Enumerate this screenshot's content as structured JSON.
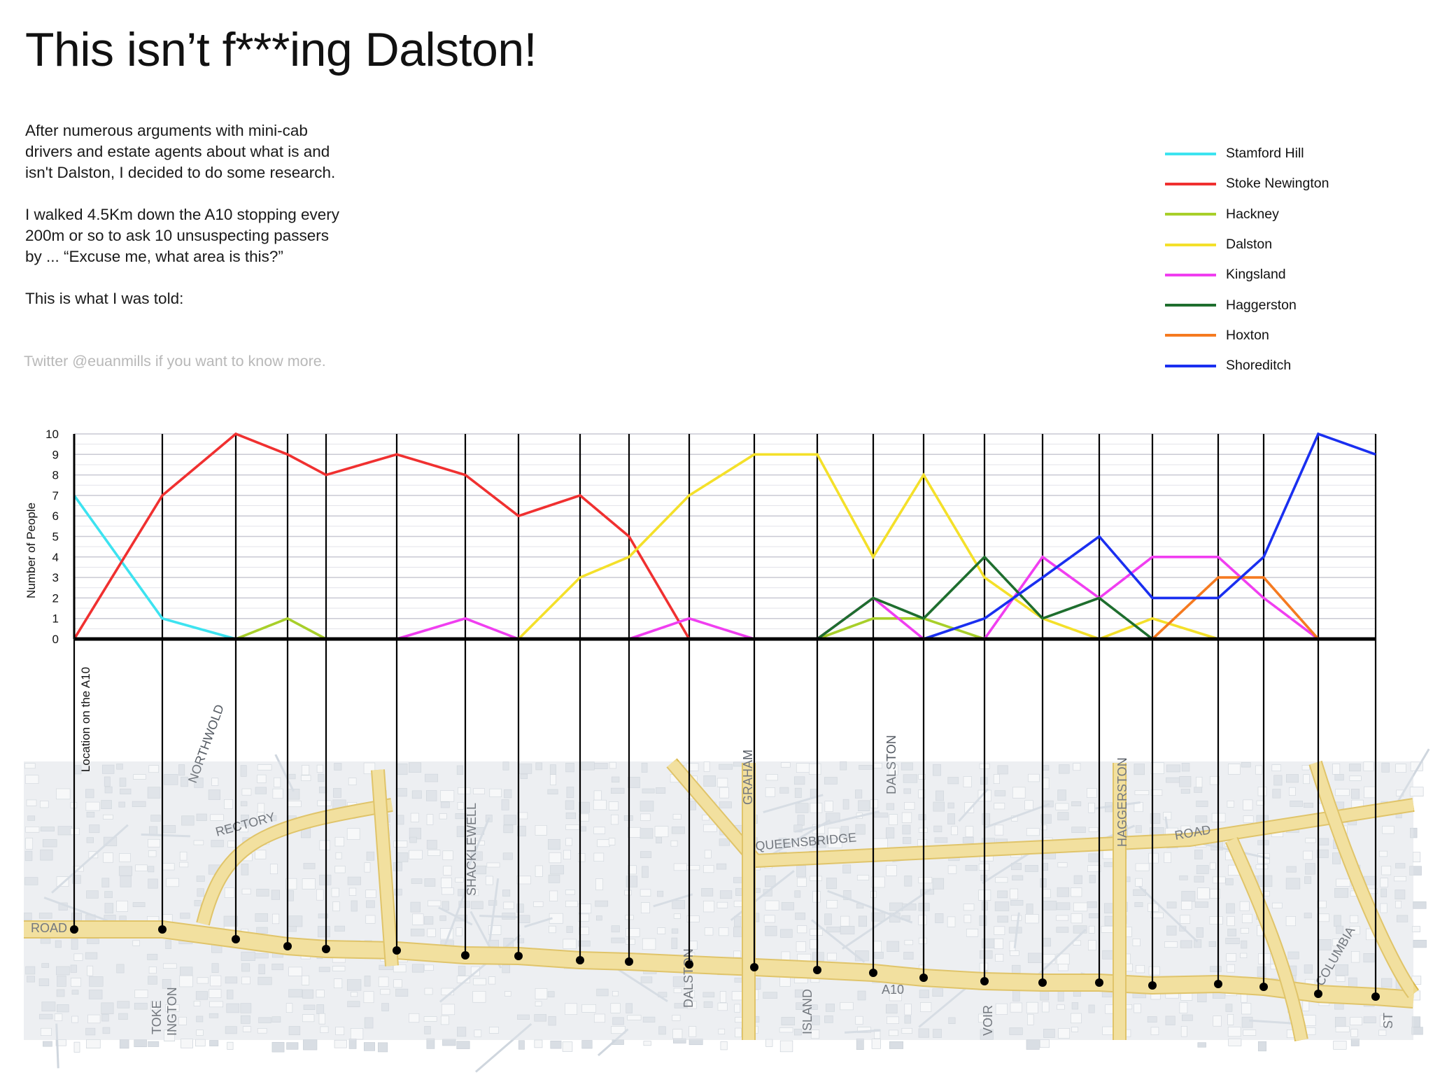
{
  "title": "This isn’t f***ing Dalston!",
  "intro": {
    "p1": "After numerous arguments with mini-cab\ndrivers and estate agents about what is and\nisn't Dalston, I decided to do some research.",
    "p2": "I walked 4.5Km down the A10 stopping every\n200m or so to ask 10 unsuspecting passers\nby ... “Excuse me, what area is this?”",
    "p3": "This is what I was told:",
    "twitter": "Twitter @euanmills if you want to know more."
  },
  "colors": {
    "grid": "#c9c9d3",
    "axis": "#000000",
    "map_base": "#e9ecef",
    "map_road_main": "#efd98a",
    "map_road_minor": "#cfd6de"
  },
  "chart_data": {
    "type": "line",
    "ylabel": "Number of People",
    "xlabel": "Location on the A10",
    "ylim": [
      0,
      10
    ],
    "yticks": [
      "0",
      "1",
      "2",
      "3",
      "4",
      "5",
      "6",
      "7",
      "8",
      "9",
      "10"
    ],
    "x": [
      1,
      2,
      3,
      4,
      5,
      6,
      7,
      8,
      9,
      10,
      11,
      12,
      13,
      14,
      15,
      16,
      17,
      18,
      19,
      20,
      21,
      22,
      23,
      24
    ],
    "series": [
      {
        "name": "Stamford Hill",
        "color": "#3de3f0",
        "values": [
          7,
          1,
          0,
          null,
          null,
          null,
          null,
          null,
          null,
          null,
          null,
          null,
          null,
          null,
          null,
          null,
          null,
          null,
          null,
          null,
          null,
          null,
          null,
          null
        ]
      },
      {
        "name": "Stoke Newington",
        "color": "#f03030",
        "values": [
          0,
          7,
          10,
          9,
          8,
          9,
          8,
          6,
          7,
          5,
          0,
          null,
          null,
          null,
          null,
          null,
          null,
          null,
          null,
          null,
          null,
          null,
          null,
          null
        ]
      },
      {
        "name": "Hackney",
        "color": "#a8cf2a",
        "values": [
          null,
          null,
          0,
          1,
          0,
          null,
          null,
          null,
          null,
          null,
          null,
          null,
          0,
          1,
          1,
          0,
          null,
          null,
          null,
          null,
          null,
          null,
          null,
          null
        ]
      },
      {
        "name": "Dalston",
        "color": "#f4e02a",
        "values": [
          null,
          null,
          null,
          null,
          null,
          null,
          null,
          0,
          3,
          4,
          7,
          9,
          9,
          4,
          8,
          3,
          1,
          0,
          1,
          0,
          null,
          null,
          null,
          null
        ]
      },
      {
        "name": "Kingsland",
        "color": "#f03ef0",
        "values": [
          null,
          null,
          null,
          null,
          null,
          0,
          1,
          0,
          null,
          0,
          1,
          0,
          0,
          2,
          0,
          0,
          4,
          2,
          4,
          4,
          2,
          0,
          null,
          null
        ]
      },
      {
        "name": "Haggerston",
        "color": "#1e6e2e",
        "values": [
          null,
          null,
          null,
          null,
          null,
          null,
          null,
          null,
          null,
          null,
          null,
          null,
          0,
          2,
          1,
          4,
          1,
          2,
          0,
          null,
          null,
          null,
          null,
          null
        ]
      },
      {
        "name": "Hoxton",
        "color": "#f57a20",
        "values": [
          null,
          null,
          null,
          null,
          null,
          null,
          null,
          null,
          null,
          null,
          null,
          null,
          null,
          null,
          null,
          null,
          null,
          null,
          0,
          3,
          3,
          0,
          null,
          null
        ]
      },
      {
        "name": "Shoreditch",
        "color": "#1a2ff0",
        "values": [
          null,
          null,
          null,
          null,
          null,
          null,
          null,
          null,
          null,
          null,
          null,
          null,
          null,
          null,
          0,
          1,
          3,
          5,
          2,
          2,
          4,
          10,
          9,
          null
        ]
      }
    ],
    "legend_position": "top-right",
    "grid": true
  },
  "map": {
    "labels": [
      "ROAD",
      "NORTHWOLD",
      "RECTORY",
      "SHACKLEWELL",
      "GRAHAM",
      "QUEENSBRIDGE",
      "DALSTON",
      "HAGGERSTON",
      "ROAD",
      "TOKE",
      "INGTON",
      "ISLAND",
      "VOIR",
      "DALSTON",
      "A10",
      "COLUMBIA",
      "ST"
    ]
  }
}
